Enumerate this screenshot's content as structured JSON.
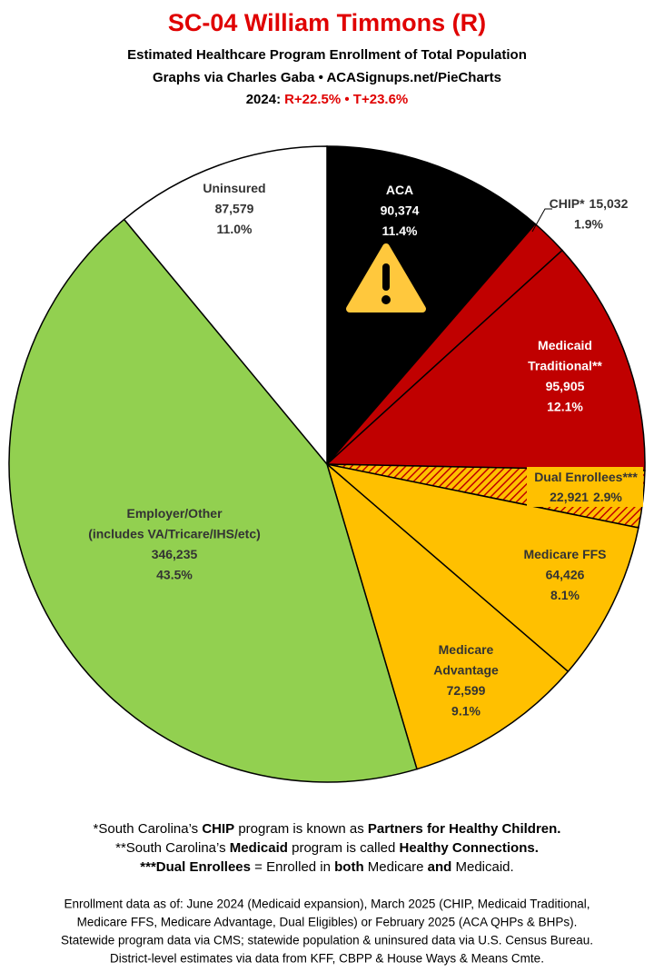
{
  "chart_data": {
    "type": "pie",
    "title": "SC-04 William Timmons (R)",
    "subtitle_lines": [
      "Estimated Healthcare Program Enrollment of Total Population",
      "Graphs via Charles Gaba  •  ACASignups.net/PieCharts"
    ],
    "year_label": "2024:",
    "results": "R+22.5% • T+23.6%",
    "categories": [
      [
        "ACA"
      ],
      [
        "CHIP*"
      ],
      [
        "Medicaid",
        "Traditional**"
      ],
      [
        "Dual Enrollees***"
      ],
      [
        "Medicare FFS"
      ],
      [
        "Medicare",
        "Advantage"
      ],
      [
        "Employer/Other",
        "(includes VA/Tricare/IHS/etc)"
      ],
      [
        "Uninsured"
      ]
    ],
    "values": [
      90374,
      15032,
      95905,
      22921,
      64426,
      72599,
      346235,
      87579
    ],
    "value_labels": [
      "90,374",
      "15,032",
      "95,905",
      "22,921",
      "64,426",
      "72,599",
      "346,235",
      "87,579"
    ],
    "percents": [
      11.4,
      1.9,
      12.1,
      2.9,
      8.1,
      9.1,
      43.5,
      11.0
    ],
    "percent_labels": [
      "11.4%",
      "1.9%",
      "12.1%",
      "2.9%",
      "8.1%",
      "9.1%",
      "43.5%",
      "11.0%"
    ],
    "colors": [
      "#000000",
      "#c00000",
      "#c00000",
      "#ffc000",
      "#ffc000",
      "#ffc000",
      "#92d050",
      "#ffffff"
    ],
    "hatch": {
      "index": 3,
      "color": "#c00000"
    },
    "footnotes": [
      [
        {
          "text": "*South Carolina’s ",
          "bold": false
        },
        {
          "text": "CHIP",
          "bold": true
        },
        {
          "text": " program is known as ",
          "bold": false
        },
        {
          "text": "Partners for Healthy Children.",
          "bold": true
        }
      ],
      [
        {
          "text": "**South Carolina’s ",
          "bold": false
        },
        {
          "text": "Medicaid",
          "bold": true
        },
        {
          "text": " program is called ",
          "bold": false
        },
        {
          "text": "Healthy Connections.",
          "bold": true
        }
      ],
      [
        {
          "text": "***Dual Enrollees",
          "bold": true
        },
        {
          "text": " = Enrolled in ",
          "bold": false
        },
        {
          "text": "both",
          "bold": true
        },
        {
          "text": " Medicare ",
          "bold": false
        },
        {
          "text": "and",
          "bold": true
        },
        {
          "text": " Medicaid.",
          "bold": false
        }
      ]
    ],
    "source_lines": [
      "Enrollment data as of: June 2024 (Medicaid expansion), March 2025 (CHIP, Medicaid Traditional,",
      "Medicare FFS, Medicare Advantage, Dual Eligibles) or February 2025 (ACA QHPs & BHPs).",
      "Statewide program data via CMS; statewide population & uninsured data via U.S. Census Bureau.",
      "District-level estimates via data from KFF, CBPP & House Ways & Means Cmte."
    ]
  }
}
